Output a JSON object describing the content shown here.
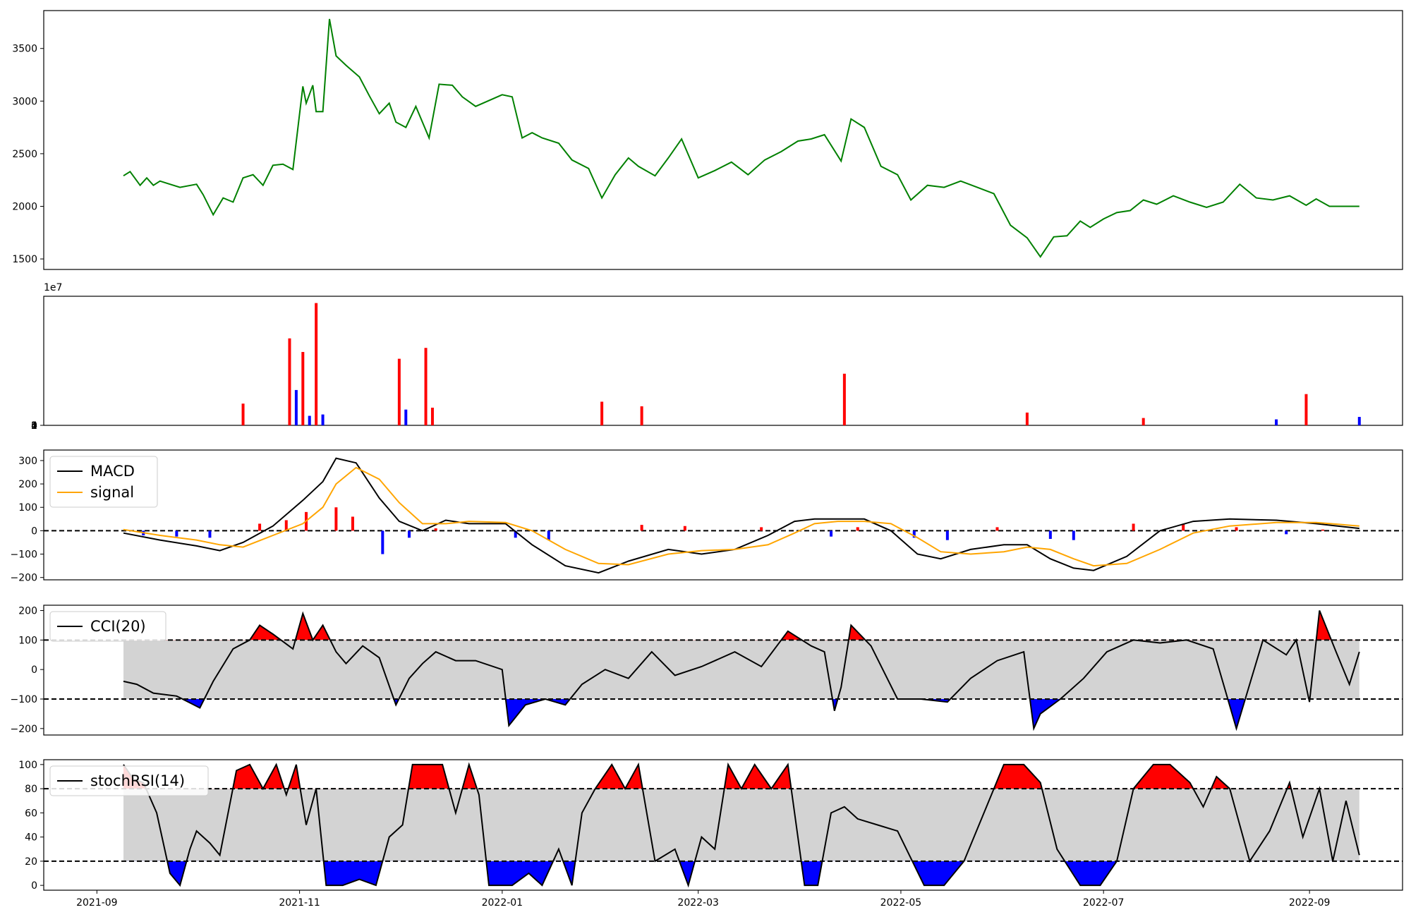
{
  "chart_data": [
    {
      "panel": "price",
      "type": "line",
      "ylim": [
        1400,
        3860
      ],
      "yticks": [
        "1500",
        "2000",
        "2500",
        "3000",
        "3500"
      ],
      "color": "#008000",
      "series": [
        {
          "name": "",
          "x": [
            "2021-09-09",
            "2021-09-11",
            "2021-09-14",
            "2021-09-16",
            "2021-09-18",
            "2021-09-20",
            "2021-09-22",
            "2021-09-26",
            "2021-10-01",
            "2021-10-03",
            "2021-10-06",
            "2021-10-09",
            "2021-10-12",
            "2021-10-15",
            "2021-10-18",
            "2021-10-21",
            "2021-10-24",
            "2021-10-27",
            "2021-10-30",
            "2021-11-02",
            "2021-11-03",
            "2021-11-05",
            "2021-11-06",
            "2021-11-08",
            "2021-11-10",
            "2021-11-12",
            "2021-11-15",
            "2021-11-19",
            "2021-11-22",
            "2021-11-25",
            "2021-11-28",
            "2021-11-30",
            "2021-12-03",
            "2021-12-06",
            "2021-12-10",
            "2021-12-13",
            "2021-12-17",
            "2021-12-20",
            "2021-12-24",
            "2022-01-01",
            "2022-01-04",
            "2022-01-07",
            "2022-01-10",
            "2022-01-13",
            "2022-01-18",
            "2022-01-22",
            "2022-01-27",
            "2022-01-31",
            "2022-02-04",
            "2022-02-08",
            "2022-02-11",
            "2022-02-16",
            "2022-02-20",
            "2022-02-24",
            "2022-03-01",
            "2022-03-06",
            "2022-03-11",
            "2022-03-16",
            "2022-03-21",
            "2022-03-26",
            "2022-03-31",
            "2022-04-04",
            "2022-04-08",
            "2022-04-13",
            "2022-04-16",
            "2022-04-20",
            "2022-04-25",
            "2022-04-30",
            "2022-05-04",
            "2022-05-09",
            "2022-05-14",
            "2022-05-19",
            "2022-05-24",
            "2022-05-29",
            "2022-06-03",
            "2022-06-08",
            "2022-06-12",
            "2022-06-16",
            "2022-06-20",
            "2022-06-24",
            "2022-06-27",
            "2022-07-01",
            "2022-07-05",
            "2022-07-09",
            "2022-07-13",
            "2022-07-17",
            "2022-07-22",
            "2022-07-27",
            "2022-08-01",
            "2022-08-06",
            "2022-08-11",
            "2022-08-16",
            "2022-08-21",
            "2022-08-26",
            "2022-08-31",
            "2022-09-03",
            "2022-09-07",
            "2022-09-11",
            "2022-09-14",
            "2022-09-16"
          ],
          "y": [
            2290,
            2330,
            2200,
            2270,
            2200,
            2240,
            2220,
            2180,
            2210,
            2110,
            1920,
            2080,
            2040,
            2270,
            2300,
            2200,
            2390,
            2400,
            2350,
            3140,
            2980,
            3150,
            2900,
            2900,
            3780,
            3430,
            3340,
            3230,
            3050,
            2880,
            2980,
            2800,
            2750,
            2950,
            2650,
            3160,
            3150,
            3040,
            2950,
            3060,
            3040,
            2650,
            2700,
            2650,
            2600,
            2440,
            2360,
            2080,
            2300,
            2460,
            2380,
            2290,
            2460,
            2640,
            2270,
            2340,
            2420,
            2300,
            2440,
            2520,
            2620,
            2640,
            2680,
            2430,
            2830,
            2750,
            2380,
            2300,
            2060,
            2200,
            2180,
            2240,
            2180,
            2120,
            1820,
            1700,
            1520,
            1710,
            1720,
            1860,
            1800,
            1880,
            1940,
            1960,
            2060,
            2020,
            2100,
            2040,
            1990,
            2040,
            2210,
            2080,
            2060,
            2100,
            2010,
            2070,
            2000,
            2000,
            2000,
            2000
          ]
        }
      ]
    },
    {
      "panel": "volume",
      "type": "bar",
      "ylim": [
        0,
        47500000.0
      ],
      "yticks": [
        "0",
        "1",
        "2",
        "3",
        "4"
      ],
      "offset_label": "1e7",
      "colors": {
        "up": "#ff0000",
        "down": "#0000ff"
      },
      "x": [
        "2021-10-15",
        "2021-10-29",
        "2021-10-31",
        "2021-11-02",
        "2021-11-04",
        "2021-11-06",
        "2021-11-08",
        "2021-12-01",
        "2021-12-03",
        "2021-12-09",
        "2021-12-11",
        "2022-01-31",
        "2022-02-12",
        "2022-04-14",
        "2022-06-08",
        "2022-07-13",
        "2022-08-22",
        "2022-08-31",
        "2022-09-16"
      ],
      "values": [
        8000000.0,
        32000000.0,
        13000000.0,
        27000000.0,
        3500000.0,
        45000000.0,
        4000000.0,
        24500000.0,
        5800000.0,
        28500000.0,
        6500000.0,
        8700000.0,
        7000000.0,
        19000000.0,
        4700000.0,
        2700000.0,
        2200000.0,
        11500000.0,
        3100000.0
      ],
      "directions": [
        "up",
        "up",
        "down",
        "up",
        "down",
        "up",
        "down",
        "up",
        "down",
        "up",
        "up",
        "up",
        "up",
        "up",
        "up",
        "up",
        "down",
        "up",
        "down"
      ]
    },
    {
      "panel": "macd",
      "type": "line",
      "ylim": [
        -210,
        345
      ],
      "yticks": [
        "300",
        "200",
        "100",
        "0",
        "−100",
        "−200"
      ],
      "legend": {
        "placement": "upper-left"
      },
      "series": [
        {
          "name": "MACD",
          "color": "#000000",
          "x": [
            "2021-09-09",
            "2021-09-20",
            "2021-10-01",
            "2021-10-08",
            "2021-10-15",
            "2021-10-24",
            "2021-11-02",
            "2021-11-08",
            "2021-11-12",
            "2021-11-18",
            "2021-11-25",
            "2021-12-01",
            "2021-12-08",
            "2021-12-15",
            "2021-12-22",
            "2022-01-02",
            "2022-01-10",
            "2022-01-20",
            "2022-01-30",
            "2022-02-08",
            "2022-02-20",
            "2022-03-02",
            "2022-03-12",
            "2022-03-22",
            "2022-03-30",
            "2022-04-05",
            "2022-04-12",
            "2022-04-20",
            "2022-04-28",
            "2022-05-06",
            "2022-05-13",
            "2022-05-22",
            "2022-06-01",
            "2022-06-08",
            "2022-06-15",
            "2022-06-22",
            "2022-06-28",
            "2022-07-08",
            "2022-07-18",
            "2022-07-28",
            "2022-08-08",
            "2022-08-22",
            "2022-09-03",
            "2022-09-16"
          ],
          "y": [
            -10,
            -40,
            -65,
            -85,
            -50,
            20,
            130,
            210,
            310,
            290,
            140,
            40,
            0,
            45,
            30,
            30,
            -60,
            -150,
            -180,
            -130,
            -80,
            -100,
            -80,
            -20,
            40,
            50,
            50,
            50,
            0,
            -100,
            -120,
            -80,
            -60,
            -60,
            -120,
            -160,
            -170,
            -110,
            0,
            40,
            50,
            45,
            30,
            10
          ]
        },
        {
          "name": "signal",
          "color": "#ffa500",
          "x": [
            "2021-09-09",
            "2021-09-20",
            "2021-10-01",
            "2021-10-08",
            "2021-10-15",
            "2021-10-24",
            "2021-11-02",
            "2021-11-08",
            "2021-11-12",
            "2021-11-18",
            "2021-11-25",
            "2021-12-01",
            "2021-12-08",
            "2021-12-15",
            "2021-12-22",
            "2022-01-02",
            "2022-01-10",
            "2022-01-20",
            "2022-01-30",
            "2022-02-08",
            "2022-02-20",
            "2022-03-02",
            "2022-03-12",
            "2022-03-22",
            "2022-03-30",
            "2022-04-05",
            "2022-04-12",
            "2022-04-20",
            "2022-04-28",
            "2022-05-06",
            "2022-05-13",
            "2022-05-22",
            "2022-06-01",
            "2022-06-08",
            "2022-06-15",
            "2022-06-22",
            "2022-06-28",
            "2022-07-08",
            "2022-07-18",
            "2022-07-28",
            "2022-08-08",
            "2022-08-22",
            "2022-09-03",
            "2022-09-16"
          ],
          "y": [
            5,
            -20,
            -40,
            -60,
            -70,
            -20,
            30,
            100,
            200,
            270,
            220,
            120,
            30,
            30,
            40,
            35,
            0,
            -80,
            -140,
            -145,
            -100,
            -85,
            -80,
            -60,
            -10,
            30,
            40,
            40,
            30,
            -30,
            -90,
            -100,
            -90,
            -70,
            -80,
            -120,
            -150,
            -140,
            -80,
            -10,
            20,
            35,
            35,
            20
          ]
        }
      ],
      "histogram": {
        "colors": {
          "positive": "#ff0000",
          "negative": "#0000ff"
        },
        "x": [
          "2021-09-15",
          "2021-09-25",
          "2021-10-05",
          "2021-10-20",
          "2021-10-28",
          "2021-11-03",
          "2021-11-12",
          "2021-11-17",
          "2021-11-26",
          "2021-12-04",
          "2021-12-12",
          "2022-01-05",
          "2022-01-15",
          "2022-02-12",
          "2022-02-25",
          "2022-03-20",
          "2022-04-10",
          "2022-04-18",
          "2022-05-05",
          "2022-05-15",
          "2022-05-30",
          "2022-06-15",
          "2022-06-22",
          "2022-07-10",
          "2022-07-25",
          "2022-08-10",
          "2022-08-25",
          "2022-09-05"
        ],
        "y": [
          -20,
          -25,
          -30,
          30,
          45,
          80,
          100,
          60,
          -100,
          -30,
          10,
          -30,
          -40,
          25,
          20,
          15,
          -25,
          15,
          -30,
          -40,
          15,
          -35,
          -40,
          30,
          30,
          15,
          -15,
          5
        ]
      },
      "reference_lines": [
        0
      ]
    },
    {
      "panel": "cci",
      "type": "line",
      "ylim": [
        -222,
        218
      ],
      "yticks": [
        "200",
        "100",
        "0",
        "−100",
        "−200"
      ],
      "legend": {
        "placement": "upper-left"
      },
      "band": [
        -100,
        100
      ],
      "reference_lines": [
        100,
        -100
      ],
      "fills": {
        "above": "#ff0000",
        "below": "#0000ff",
        "band": "#d3d3d3"
      },
      "series": [
        {
          "name": "CCI(20)",
          "color": "#000000",
          "x": [
            "2021-09-09",
            "2021-09-13",
            "2021-09-18",
            "2021-09-25",
            "2021-10-02",
            "2021-10-06",
            "2021-10-12",
            "2021-10-17",
            "2021-10-20",
            "2021-10-24",
            "2021-10-30",
            "2021-11-02",
            "2021-11-05",
            "2021-11-08",
            "2021-11-12",
            "2021-11-15",
            "2021-11-20",
            "2021-11-25",
            "2021-11-30",
            "2021-12-04",
            "2021-12-08",
            "2021-12-12",
            "2021-12-18",
            "2021-12-24",
            "2022-01-01",
            "2022-01-03",
            "2022-01-08",
            "2022-01-14",
            "2022-01-20",
            "2022-01-25",
            "2022-02-01",
            "2022-02-08",
            "2022-02-15",
            "2022-02-22",
            "2022-03-02",
            "2022-03-12",
            "2022-03-20",
            "2022-03-28",
            "2022-04-04",
            "2022-04-08",
            "2022-04-11",
            "2022-04-13",
            "2022-04-16",
            "2022-04-22",
            "2022-04-30",
            "2022-05-07",
            "2022-05-15",
            "2022-05-22",
            "2022-05-30",
            "2022-06-07",
            "2022-06-10",
            "2022-06-12",
            "2022-06-18",
            "2022-06-25",
            "2022-07-02",
            "2022-07-10",
            "2022-07-18",
            "2022-07-26",
            "2022-08-03",
            "2022-08-10",
            "2022-08-18",
            "2022-08-25",
            "2022-08-28",
            "2022-09-01",
            "2022-09-04",
            "2022-09-09",
            "2022-09-13",
            "2022-09-16"
          ],
          "y": [
            -40,
            -50,
            -80,
            -90,
            -130,
            -40,
            70,
            100,
            150,
            120,
            70,
            190,
            100,
            150,
            60,
            20,
            80,
            40,
            -120,
            -30,
            20,
            60,
            30,
            30,
            0,
            -190,
            -120,
            -100,
            -120,
            -50,
            0,
            -30,
            60,
            -20,
            10,
            60,
            10,
            130,
            80,
            60,
            -140,
            -60,
            150,
            80,
            -100,
            -100,
            -110,
            -30,
            30,
            60,
            -200,
            -150,
            -100,
            -30,
            60,
            100,
            90,
            100,
            70,
            -200,
            100,
            50,
            100,
            -110,
            200,
            60,
            -50,
            60
          ]
        }
      ]
    },
    {
      "panel": "stochrsi",
      "type": "line",
      "ylim": [
        -4,
        104
      ],
      "yticks": [
        "100",
        "80",
        "60",
        "40",
        "20",
        "0"
      ],
      "legend": {
        "placement": "upper-left"
      },
      "band": [
        20,
        80
      ],
      "reference_lines": [
        80,
        20
      ],
      "fills": {
        "above": "#ff0000",
        "below": "#0000ff",
        "band": "#d3d3d3"
      },
      "series": [
        {
          "name": "stochRSI(14)",
          "color": "#000000",
          "x": [
            "2021-09-09",
            "2021-09-12",
            "2021-09-15",
            "2021-09-19",
            "2021-09-23",
            "2021-09-26",
            "2021-09-29",
            "2021-10-01",
            "2021-10-05",
            "2021-10-08",
            "2021-10-13",
            "2021-10-17",
            "2021-10-21",
            "2021-10-25",
            "2021-10-28",
            "2021-10-31",
            "2021-11-03",
            "2021-11-06",
            "2021-11-09",
            "2021-11-14",
            "2021-11-19",
            "2021-11-24",
            "2021-11-28",
            "2021-12-02",
            "2021-12-05",
            "2021-12-09",
            "2021-12-14",
            "2021-12-18",
            "2021-12-22",
            "2021-12-25",
            "2021-12-28",
            "2022-01-04",
            "2022-01-09",
            "2022-01-13",
            "2022-01-18",
            "2022-01-22",
            "2022-01-25",
            "2022-01-29",
            "2022-02-03",
            "2022-02-07",
            "2022-02-11",
            "2022-02-16",
            "2022-02-22",
            "2022-02-26",
            "2022-03-02",
            "2022-03-06",
            "2022-03-10",
            "2022-03-14",
            "2022-03-18",
            "2022-03-23",
            "2022-03-28",
            "2022-04-02",
            "2022-04-06",
            "2022-04-10",
            "2022-04-14",
            "2022-04-18",
            "2022-04-24",
            "2022-04-30",
            "2022-05-08",
            "2022-05-14",
            "2022-05-20",
            "2022-05-26",
            "2022-06-01",
            "2022-06-07",
            "2022-06-12",
            "2022-06-17",
            "2022-06-24",
            "2022-06-30",
            "2022-07-05",
            "2022-07-10",
            "2022-07-16",
            "2022-07-21",
            "2022-07-27",
            "2022-07-31",
            "2022-08-04",
            "2022-08-08",
            "2022-08-14",
            "2022-08-20",
            "2022-08-26",
            "2022-08-30",
            "2022-09-04",
            "2022-09-08",
            "2022-09-12",
            "2022-09-16"
          ],
          "y": [
            100,
            88,
            85,
            60,
            10,
            0,
            30,
            45,
            35,
            25,
            95,
            100,
            80,
            100,
            75,
            100,
            50,
            80,
            0,
            0,
            5,
            0,
            40,
            50,
            100,
            100,
            100,
            60,
            100,
            75,
            0,
            0,
            10,
            0,
            30,
            0,
            60,
            80,
            100,
            80,
            100,
            20,
            30,
            0,
            40,
            30,
            100,
            80,
            100,
            80,
            100,
            0,
            0,
            60,
            65,
            55,
            50,
            45,
            0,
            0,
            20,
            60,
            100,
            100,
            85,
            30,
            0,
            0,
            20,
            80,
            100,
            100,
            85,
            65,
            90,
            80,
            20,
            45,
            85,
            40,
            80,
            20,
            70,
            25
          ]
        }
      ]
    }
  ],
  "x_axis": {
    "tick_labels": [
      "2021-09",
      "2021-11",
      "2022-01",
      "2022-03",
      "2022-05",
      "2022-07",
      "2022-09"
    ]
  }
}
